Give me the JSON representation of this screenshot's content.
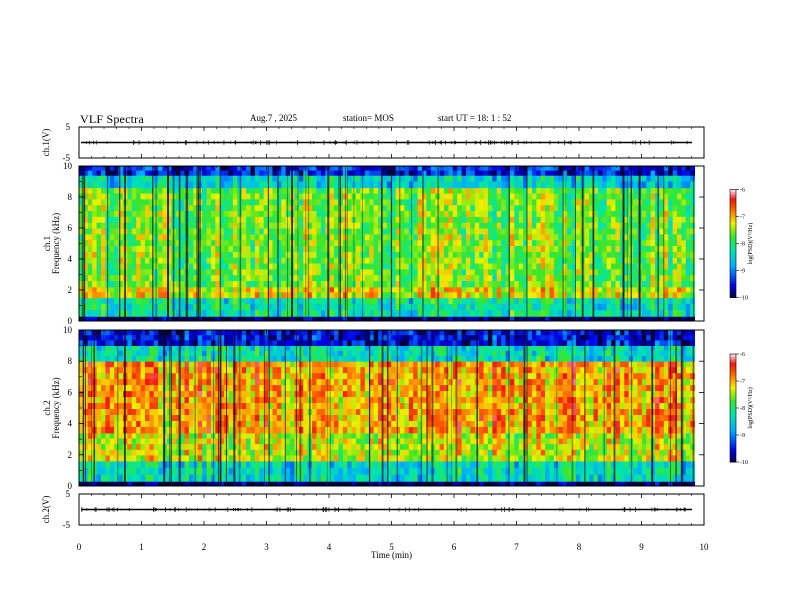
{
  "header": {
    "title": "VLF Spectra",
    "date": "Aug.7 , 2025",
    "station": "station= MOS",
    "start": "start UT = 18: 1 : 52"
  },
  "chart_data": [
    {
      "type": "line",
      "ylabel": "ch.1(V)",
      "ylim": [
        -5,
        5
      ],
      "yticks": [
        "5",
        "-5"
      ],
      "xlim": [
        0,
        10
      ],
      "description_level": 0.0
    },
    {
      "type": "heatmap",
      "ylabel_line1": "ch.1",
      "ylabel_line2": "Frequency (kHz)",
      "ylim": [
        0,
        10
      ],
      "yticks": [
        "0",
        "2",
        "4",
        "6",
        "8",
        "10"
      ],
      "xlim": [
        0,
        10
      ],
      "data_extent_x": [
        0,
        9.85
      ],
      "colorbar": {
        "label": "log(PSD)(V²/Hz)",
        "ticks": [
          "-6",
          "-7",
          "-8",
          "-9",
          "-10"
        ],
        "range": [
          -10,
          -6
        ]
      },
      "bands_khz": [
        {
          "from": 0.0,
          "to": 0.3,
          "level": -10
        },
        {
          "from": 0.3,
          "to": 1.5,
          "level": -8.2
        },
        {
          "from": 1.5,
          "to": 2.2,
          "level": -7.2
        },
        {
          "from": 2.2,
          "to": 8.6,
          "level": -7.6
        },
        {
          "from": 8.6,
          "to": 9.4,
          "level": -8.4
        },
        {
          "from": 9.4,
          "to": 10.0,
          "level": -9.4
        }
      ]
    },
    {
      "type": "heatmap",
      "ylabel_line1": "ch.2",
      "ylabel_line2": "Frequency (kHz)",
      "ylim": [
        0,
        10
      ],
      "yticks": [
        "0",
        "2",
        "4",
        "6",
        "8",
        "10"
      ],
      "xlim": [
        0,
        10
      ],
      "data_extent_x": [
        0,
        9.85
      ],
      "colorbar": {
        "label": "log(PSD)(V²/Hz)",
        "ticks": [
          "-6",
          "-7",
          "-8",
          "-9",
          "-10"
        ],
        "range": [
          -10,
          -6
        ]
      },
      "bands_khz": [
        {
          "from": 0.0,
          "to": 0.3,
          "level": -10
        },
        {
          "from": 0.3,
          "to": 1.6,
          "level": -8.3
        },
        {
          "from": 1.6,
          "to": 3.4,
          "level": -7.3
        },
        {
          "from": 3.4,
          "to": 8.0,
          "level": -6.9
        },
        {
          "from": 8.0,
          "to": 9.0,
          "level": -8.3
        },
        {
          "from": 9.0,
          "to": 10.0,
          "level": -9.5
        }
      ]
    },
    {
      "type": "line",
      "ylabel": "ch.2(V)",
      "ylim": [
        -5,
        5
      ],
      "yticks": [
        "5",
        "-5"
      ],
      "xlim": [
        0,
        10
      ],
      "description_level": 0.0
    }
  ],
  "xaxis": {
    "label": "Time (min)",
    "ticks": [
      "0",
      "1",
      "2",
      "3",
      "4",
      "5",
      "6",
      "7",
      "8",
      "9",
      "10"
    ]
  }
}
